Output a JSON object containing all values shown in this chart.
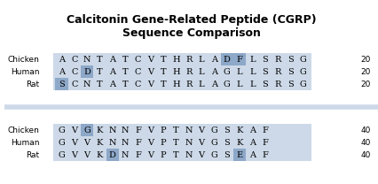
{
  "title": "Calcitonin Gene-Related Peptide (CGRP)\nSequence Comparison",
  "bg_color": "#cdd9e8",
  "highlight_color": "#8da8c8",
  "row_bg_light": "#dce6f0",
  "rows": [
    {
      "label": "Chicken",
      "sequence": [
        "A",
        "C",
        "N",
        "T",
        "A",
        "T",
        "C",
        "V",
        "T",
        "H",
        "R",
        "L",
        "A",
        "D",
        "F",
        "L",
        "S",
        "R",
        "S",
        "G"
      ],
      "highlights": [
        13,
        14
      ],
      "number": 20,
      "group": 0
    },
    {
      "label": "Human",
      "sequence": [
        "A",
        "C",
        "D",
        "T",
        "A",
        "T",
        "C",
        "V",
        "T",
        "H",
        "R",
        "L",
        "A",
        "G",
        "L",
        "L",
        "S",
        "R",
        "S",
        "G"
      ],
      "highlights": [
        2
      ],
      "number": 20,
      "group": 0
    },
    {
      "label": "Rat",
      "sequence": [
        "S",
        "C",
        "N",
        "T",
        "A",
        "T",
        "C",
        "V",
        "T",
        "H",
        "R",
        "L",
        "A",
        "G",
        "L",
        "L",
        "S",
        "R",
        "S",
        "G"
      ],
      "highlights": [
        0
      ],
      "number": 20,
      "group": 0
    },
    {
      "label": "Chicken",
      "sequence": [
        "G",
        "V",
        "G",
        "K",
        "N",
        "N",
        "F",
        "V",
        "P",
        "T",
        "N",
        "V",
        "G",
        "S",
        "K",
        "A",
        "F",
        "",
        "",
        ""
      ],
      "highlights": [
        2
      ],
      "number": 40,
      "group": 1
    },
    {
      "label": "Human",
      "sequence": [
        "G",
        "V",
        "V",
        "K",
        "N",
        "N",
        "F",
        "V",
        "P",
        "T",
        "N",
        "V",
        "G",
        "S",
        "K",
        "A",
        "F",
        "",
        "",
        ""
      ],
      "highlights": [],
      "number": 40,
      "group": 1
    },
    {
      "label": "Rat",
      "sequence": [
        "G",
        "V",
        "V",
        "K",
        "D",
        "N",
        "F",
        "V",
        "P",
        "T",
        "N",
        "V",
        "G",
        "S",
        "E",
        "A",
        "F",
        "",
        "",
        ""
      ],
      "highlights": [
        4,
        14
      ],
      "number": 40,
      "group": 1
    }
  ]
}
